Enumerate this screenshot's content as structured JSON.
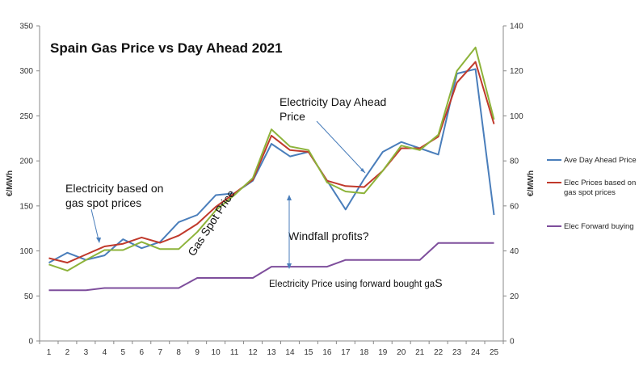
{
  "chart_data": {
    "type": "line",
    "title": "Spain Gas Price vs Day Ahead 2021",
    "y_label_left": "€/MWh",
    "y_label_right": "€/MWh",
    "ylim_left": [
      0,
      350
    ],
    "ylim_right": [
      0,
      140
    ],
    "yticks_left": [
      0,
      50,
      100,
      150,
      200,
      250,
      300,
      350
    ],
    "yticks_right": [
      0,
      20,
      40,
      60,
      80,
      100,
      120,
      140
    ],
    "grid": false,
    "legend_position": "right",
    "categories": [
      "1",
      "2",
      "3",
      "4",
      "5",
      "6",
      "7",
      "8",
      "9",
      "10",
      "11",
      "12",
      "13",
      "14",
      "15",
      "16",
      "17",
      "18",
      "19",
      "20",
      "21",
      "22",
      "23",
      "24",
      "25"
    ],
    "series": [
      {
        "name": "Ave Day Ahead Price",
        "axis": "left",
        "color": "#4A7EBB",
        "values": [
          87,
          98,
          90,
          95,
          113,
          103,
          110,
          132,
          140,
          162,
          164,
          178,
          219,
          205,
          210,
          178,
          146,
          180,
          210,
          221,
          214,
          207,
          297,
          302,
          140
        ]
      },
      {
        "name": "Elec Prices based on gas spot prices",
        "axis": "left",
        "color": "#C0392B",
        "values": [
          92,
          87,
          96,
          105,
          108,
          115,
          109,
          117,
          130,
          149,
          164,
          179,
          228,
          212,
          210,
          178,
          172,
          171,
          189,
          214,
          214,
          227,
          287,
          310,
          241
        ]
      },
      {
        "name": "Gas Spot Price",
        "axis": "left",
        "color": "#8DB33A",
        "values": [
          85,
          78,
          90,
          101,
          101,
          110,
          102,
          102,
          121,
          145,
          162,
          181,
          235,
          216,
          212,
          176,
          166,
          164,
          189,
          217,
          212,
          229,
          300,
          326,
          246
        ]
      },
      {
        "name": "Elec Forward buying",
        "axis": "right",
        "color": "#7E4E9C",
        "values": [
          22.5,
          22.5,
          22.5,
          23.5,
          23.5,
          23.5,
          23.5,
          23.5,
          28,
          28,
          28,
          28,
          33,
          33,
          33,
          33,
          36,
          36,
          36,
          36,
          36,
          43.5,
          43.5,
          43.5,
          43.5
        ]
      }
    ],
    "annotations": {
      "day_ahead": [
        "Electricity Day Ahead",
        "Price"
      ],
      "gas_based": [
        "Electricity based on",
        "gas spot prices"
      ],
      "gas_spot": "Gas Spot Price",
      "windfall": "Windfall profits?",
      "forward_prefix": "Electricity Price using forward bought ga",
      "forward_suffix": "S"
    },
    "legend": [
      [
        "Ave Day Ahead Price"
      ],
      [
        "Elec Prices based on",
        "gas spot prices"
      ],
      [
        "Elec Forward buying"
      ]
    ]
  }
}
